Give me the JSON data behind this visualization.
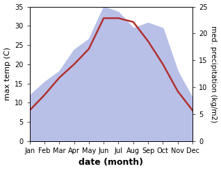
{
  "months": [
    "Jan",
    "Feb",
    "Mar",
    "Apr",
    "May",
    "Jun",
    "Jul",
    "Aug",
    "Sep",
    "Oct",
    "Nov",
    "Dec"
  ],
  "temp_max": [
    8,
    12,
    16.5,
    20,
    24,
    32,
    32,
    31,
    26,
    20,
    13,
    8
  ],
  "precipitation": [
    8.5,
    11,
    13,
    17,
    19,
    25,
    24,
    21,
    22,
    21,
    13,
    8
  ],
  "temp_ylim": [
    0,
    35
  ],
  "precip_ylim": [
    0,
    25
  ],
  "temp_color": "#b03030",
  "precip_fill_color": "#b8c0e8",
  "xlabel": "date (month)",
  "ylabel_left": "max temp (C)",
  "ylabel_right": "med. precipitation (kg/m2)",
  "bg_color": "#ffffff",
  "temp_linewidth": 1.8,
  "tick_fontsize": 7,
  "label_fontsize": 8,
  "xlabel_fontsize": 9
}
